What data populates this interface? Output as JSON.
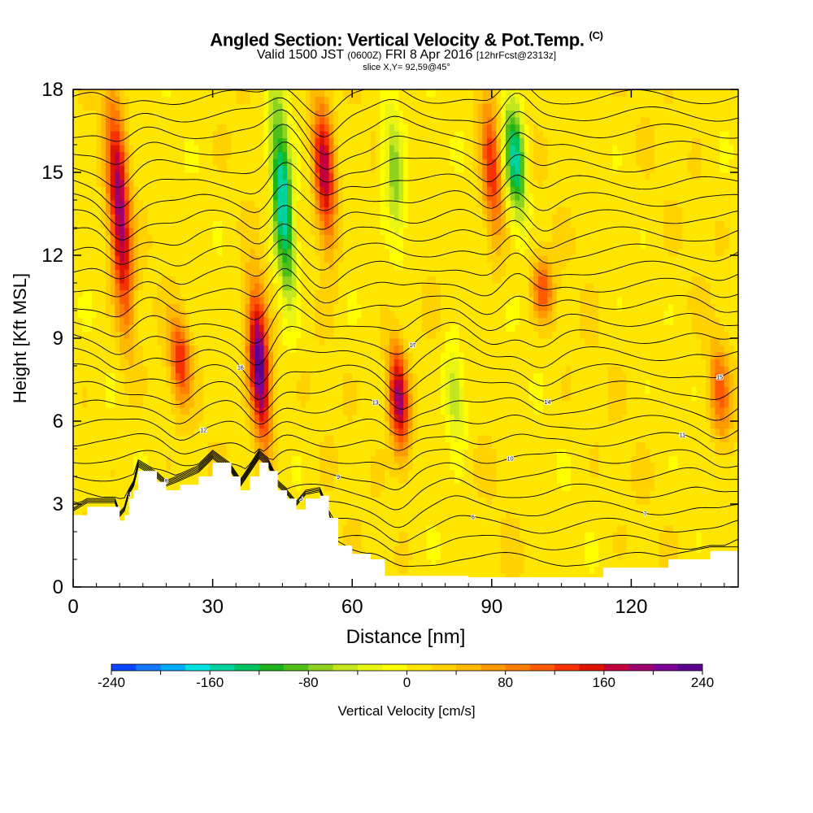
{
  "chart_data": {
    "type": "heatmap",
    "title": "Angled Section: Vertical Velocity & Pot.Temp.",
    "title_suffix": "(C)",
    "subtitle_main": "Valid 1500 JST",
    "subtitle_zulu": "(0600Z)",
    "subtitle_date": "FRI 8 Apr 2016",
    "subtitle_fcst": "[12hrFcst@2313z]",
    "slice_label": "slice X,Y= 92,59@45°",
    "xlabel": "Distance [nm]",
    "ylabel": "Height [Kft MSL]",
    "xlim": [
      0,
      143
    ],
    "ylim": [
      0,
      18
    ],
    "x_ticks": [
      "0",
      "30",
      "60",
      "90",
      "120"
    ],
    "y_ticks": [
      "0",
      "3",
      "6",
      "9",
      "12",
      "15",
      "18"
    ],
    "colorbar": {
      "label": "Vertical Velocity [cm/s]",
      "range": [
        -240,
        240
      ],
      "step": 20,
      "ticks": [
        "-240",
        "-160",
        "-80",
        "0",
        "80",
        "160",
        "240"
      ],
      "colors": [
        "#0014ff",
        "#0a46ff",
        "#1478ff",
        "#00aaff",
        "#00e1e1",
        "#00d2a0",
        "#00c364",
        "#1eb41e",
        "#50be14",
        "#8cd21e",
        "#c3e61e",
        "#ebf514",
        "#ffff00",
        "#ffe600",
        "#ffd200",
        "#ffb900",
        "#ff9b00",
        "#ff7d00",
        "#ff5a00",
        "#f53200",
        "#dc1400",
        "#c3003c",
        "#a0006e",
        "#7d0096",
        "#5a008c"
      ]
    },
    "vertical_velocity_features_cm_per_s": [
      {
        "x_nm": 10,
        "z_kft_range": [
          9,
          18
        ],
        "peak": 180
      },
      {
        "x_nm": 23,
        "z_kft_range": [
          6.5,
          10
        ],
        "peak": 120
      },
      {
        "x_nm": 40,
        "z_kft_range": [
          5,
          11
        ],
        "peak": 230
      },
      {
        "x_nm": 45,
        "z_kft_range": [
          10,
          18
        ],
        "peak": -180
      },
      {
        "x_nm": 54,
        "z_kft_range": [
          12,
          18
        ],
        "peak": 170
      },
      {
        "x_nm": 70,
        "z_kft_range": [
          4.5,
          9
        ],
        "peak": 180
      },
      {
        "x_nm": 69,
        "z_kft_range": [
          12,
          18
        ],
        "peak": -90
      },
      {
        "x_nm": 82,
        "z_kft_range": [
          5,
          9
        ],
        "peak": -80
      },
      {
        "x_nm": 90,
        "z_kft_range": [
          12,
          18
        ],
        "peak": 120
      },
      {
        "x_nm": 95,
        "z_kft_range": [
          13,
          18
        ],
        "peak": -160
      },
      {
        "x_nm": 101,
        "z_kft_range": [
          9.5,
          12
        ],
        "peak": 100
      },
      {
        "x_nm": 139,
        "z_kft_range": [
          5,
          9
        ],
        "peak": 90
      }
    ],
    "terrain_top_kft": [
      [
        0,
        2.6
      ],
      [
        3,
        2.9
      ],
      [
        9,
        2.9
      ],
      [
        10,
        2.4
      ],
      [
        11,
        2.6
      ],
      [
        12,
        3.2
      ],
      [
        13,
        3.5
      ],
      [
        14,
        4.2
      ],
      [
        18,
        3.8
      ],
      [
        20,
        3.5
      ],
      [
        23,
        3.7
      ],
      [
        27,
        4.0
      ],
      [
        30,
        4.5
      ],
      [
        34,
        4.0
      ],
      [
        36,
        3.5
      ],
      [
        38,
        4.0
      ],
      [
        40,
        4.5
      ],
      [
        42,
        4.2
      ],
      [
        44,
        3.5
      ],
      [
        46,
        3.2
      ],
      [
        48,
        2.8
      ],
      [
        50,
        3.2
      ],
      [
        53,
        3.3
      ],
      [
        55,
        2.5
      ],
      [
        57,
        1.5
      ],
      [
        60,
        1.2
      ],
      [
        64,
        1.0
      ],
      [
        67,
        0.4
      ],
      [
        85,
        0.35
      ],
      [
        114,
        0.7
      ],
      [
        120,
        0.7
      ],
      [
        128,
        1.0
      ],
      [
        137,
        1.3
      ],
      [
        143,
        1.3
      ]
    ],
    "potential_temperature_isentropes": {
      "count": 28,
      "labels": [
        "17",
        "16",
        "15",
        "14",
        "13",
        "12",
        "11",
        "10",
        "9",
        "8",
        "7",
        "6",
        "5",
        "4"
      ]
    }
  }
}
